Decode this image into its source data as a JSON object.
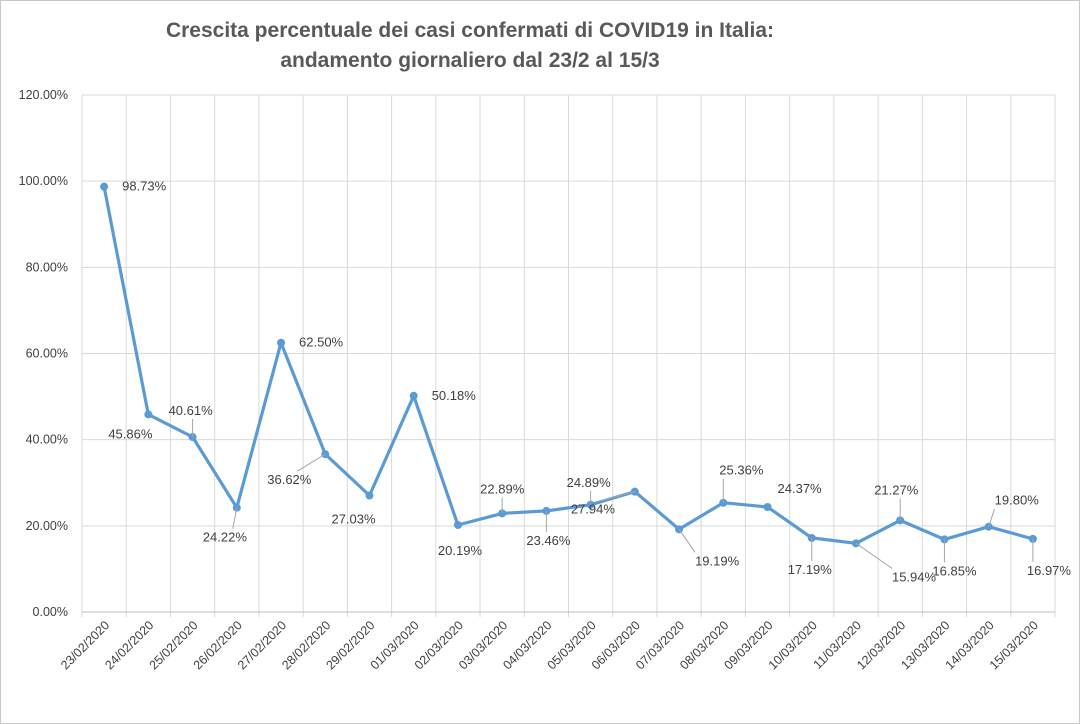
{
  "chart_data": {
    "type": "line",
    "title_line1": "Crescita percentuale dei casi confermati di COVID19 in Italia:",
    "title_line2": "andamento giornaliero dal 23/2 al 15/3",
    "xlabel": "",
    "ylabel": "",
    "ylim": [
      0,
      120
    ],
    "yticks": [
      "0.00%",
      "20.00%",
      "40.00%",
      "60.00%",
      "80.00%",
      "100.00%",
      "120.00%"
    ],
    "grid": true,
    "legend": "none",
    "categories": [
      "23/02/2020",
      "24/02/2020",
      "25/02/2020",
      "26/02/2020",
      "27/02/2020",
      "28/02/2020",
      "29/02/2020",
      "01/03/2020",
      "02/03/2020",
      "03/03/2020",
      "04/03/2020",
      "05/03/2020",
      "06/03/2020",
      "07/03/2020",
      "08/03/2020",
      "09/03/2020",
      "10/03/2020",
      "11/03/2020",
      "12/03/2020",
      "13/03/2020",
      "14/03/2020",
      "15/03/2020"
    ],
    "values": [
      98.73,
      45.86,
      40.61,
      24.22,
      62.5,
      36.62,
      27.03,
      50.18,
      20.19,
      22.89,
      23.46,
      24.89,
      27.94,
      19.19,
      25.36,
      24.37,
      17.19,
      15.94,
      21.27,
      16.85,
      19.8,
      16.97
    ],
    "value_labels": [
      "98.73%",
      "45.86%",
      "40.61%",
      "24.22%",
      "62.50%",
      "36.62%",
      "27.03%",
      "50.18%",
      "20.19%",
      "22.89%",
      "23.46%",
      "24.89%",
      "27.94%",
      "19.19%",
      "25.36%",
      "24.37%",
      "17.19%",
      "15.94%",
      "21.27%",
      "16.85%",
      "19.80%",
      "16.97%"
    ],
    "line_color": "#5b9bd5",
    "grid_color": "#d9d9d9"
  }
}
